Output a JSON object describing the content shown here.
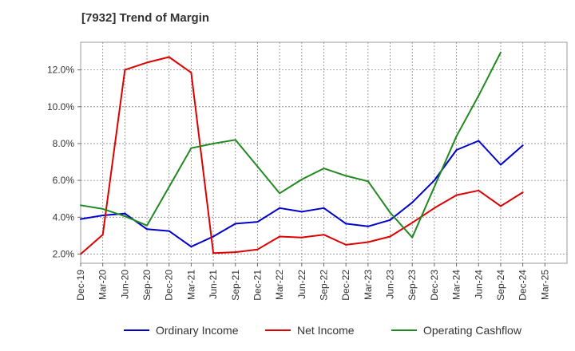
{
  "chart_data": {
    "type": "line",
    "title": "[7932]  Trend of Margin",
    "xlabel": "",
    "ylabel": "",
    "x": [
      "Dec-19",
      "Mar-20",
      "Jun-20",
      "Sep-20",
      "Dec-20",
      "Mar-21",
      "Jun-21",
      "Sep-21",
      "Dec-21",
      "Mar-22",
      "Jun-22",
      "Sep-22",
      "Dec-22",
      "Mar-23",
      "Jun-23",
      "Sep-23",
      "Dec-23",
      "Mar-24",
      "Jun-24",
      "Sep-24",
      "Dec-24",
      "Mar-25"
    ],
    "ylim": [
      1.5,
      13.5
    ],
    "yticks": [
      2.0,
      4.0,
      6.0,
      8.0,
      10.0,
      12.0
    ],
    "ytick_labels": [
      "2.0%",
      "4.0%",
      "6.0%",
      "8.0%",
      "10.0%",
      "12.0%"
    ],
    "grid": true,
    "legend_position": "bottom",
    "series": [
      {
        "name": "Ordinary Income",
        "color": "#0000cc",
        "values": [
          3.9,
          4.1,
          4.2,
          3.35,
          3.25,
          2.4,
          2.95,
          3.65,
          3.75,
          4.5,
          4.3,
          4.5,
          3.65,
          3.5,
          3.85,
          4.8,
          6.0,
          7.65,
          8.15,
          6.85,
          7.9,
          null
        ]
      },
      {
        "name": "Net Income",
        "color": "#dd0000",
        "values": [
          2.0,
          3.05,
          12.0,
          12.4,
          12.7,
          11.85,
          2.05,
          2.1,
          2.25,
          2.95,
          2.9,
          3.05,
          2.5,
          2.65,
          2.95,
          3.7,
          4.5,
          5.2,
          5.45,
          4.6,
          5.35,
          null
        ]
      },
      {
        "name": "Operating Cashflow",
        "color": "#228822",
        "values": [
          4.65,
          4.45,
          4.05,
          3.55,
          5.65,
          7.75,
          8.0,
          8.2,
          6.75,
          5.3,
          6.05,
          6.65,
          6.25,
          5.95,
          4.25,
          2.9,
          5.65,
          8.4,
          10.6,
          12.95,
          null,
          null
        ]
      }
    ]
  }
}
